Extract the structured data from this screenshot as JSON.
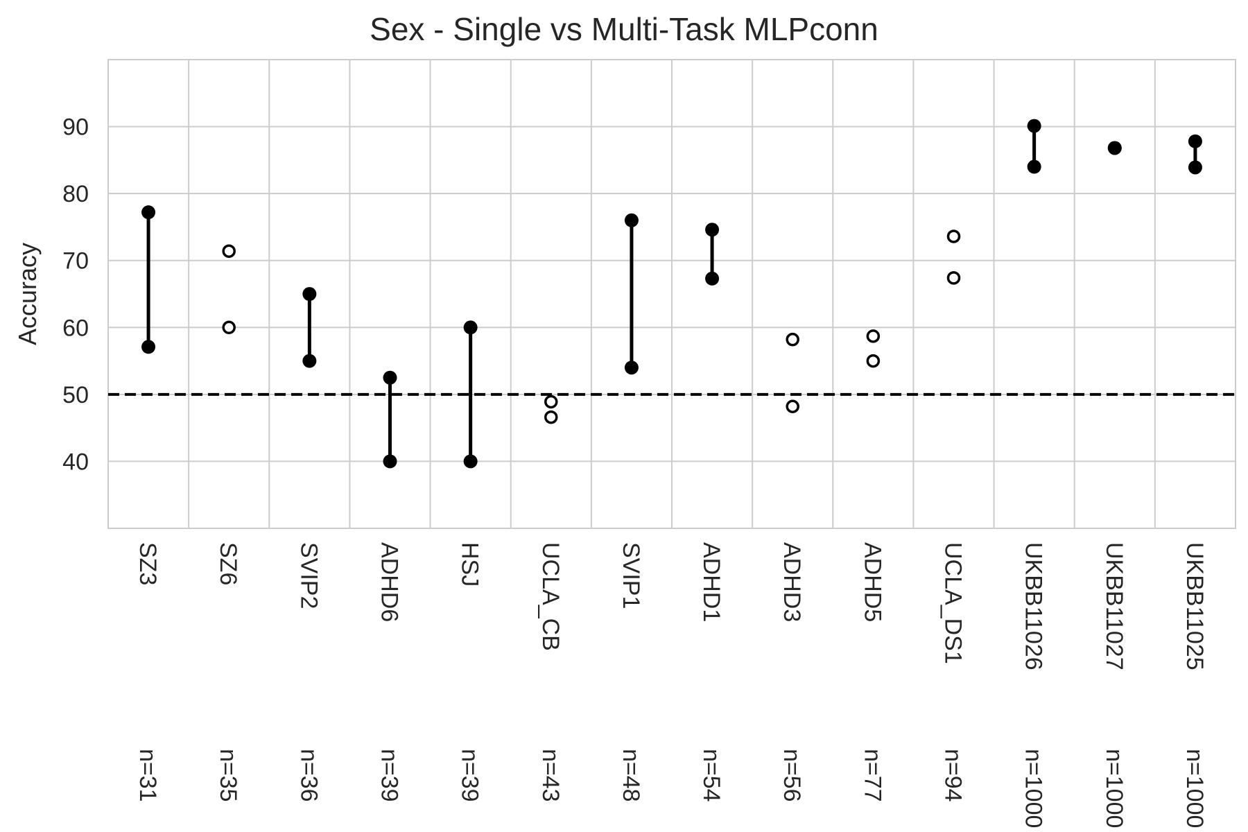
{
  "chart_data": {
    "type": "scatter",
    "title": "Sex - Single vs Multi-Task MLPconn",
    "xlabel": "",
    "ylabel": "Accuracy",
    "ylim": [
      30,
      100
    ],
    "yticks": [
      40,
      50,
      60,
      70,
      80,
      90
    ],
    "grid": true,
    "reference_line": {
      "y": 50,
      "style": "dashed"
    },
    "categories": [
      "SZ3",
      "SZ6",
      "SVIP2",
      "ADHD6",
      "HSJ",
      "UCLA_CB",
      "SVIP1",
      "ADHD1",
      "ADHD3",
      "ADHD5",
      "UCLA_DS1",
      "UKBB11026",
      "UKBB11027",
      "UKBB11025"
    ],
    "sample_sizes": [
      "n=31",
      "n=35",
      "n=36",
      "n=39",
      "n=39",
      "n=43",
      "n=48",
      "n=54",
      "n=56",
      "n=77",
      "n=94",
      "n=1000",
      "n=1000",
      "n=1000"
    ],
    "points": [
      {
        "values": [
          57.1,
          77.2
        ],
        "significant": true
      },
      {
        "values": [
          60.0,
          71.4
        ],
        "significant": false
      },
      {
        "values": [
          55.0,
          65.0
        ],
        "significant": true
      },
      {
        "values": [
          40.0,
          52.5
        ],
        "significant": true
      },
      {
        "values": [
          40.0,
          60.0
        ],
        "significant": true
      },
      {
        "values": [
          46.6,
          48.9
        ],
        "significant": false
      },
      {
        "values": [
          54.0,
          76.0
        ],
        "significant": true
      },
      {
        "values": [
          67.3,
          74.6
        ],
        "significant": true
      },
      {
        "values": [
          48.2,
          58.2
        ],
        "significant": false
      },
      {
        "values": [
          55.0,
          58.7
        ],
        "significant": false
      },
      {
        "values": [
          67.4,
          73.6
        ],
        "significant": false
      },
      {
        "values": [
          84.0,
          90.1
        ],
        "significant": true
      },
      {
        "values": [
          86.8,
          86.8
        ],
        "significant": true
      },
      {
        "values": [
          83.9,
          87.8
        ],
        "significant": true
      }
    ],
    "colors": {
      "marker": "#000000",
      "grid": "#cccccc",
      "text": "#262626"
    }
  }
}
